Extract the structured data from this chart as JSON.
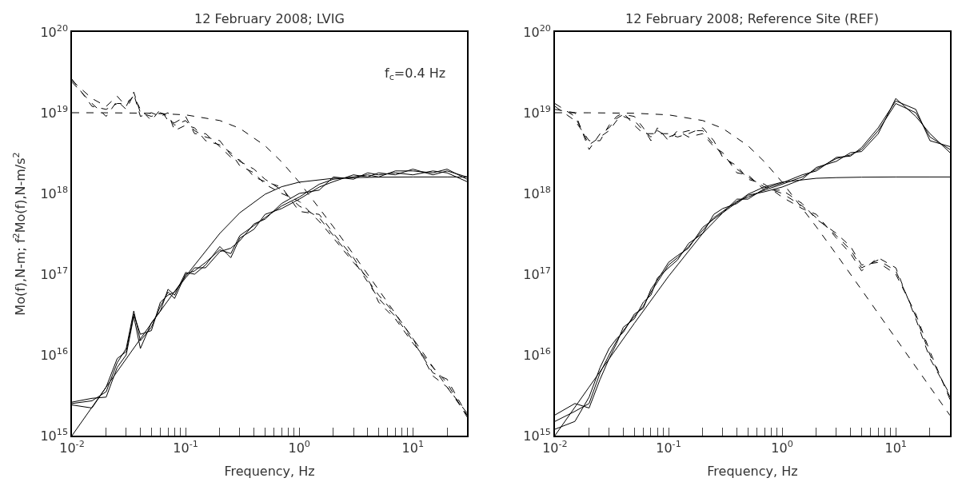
{
  "chart_data": [
    {
      "type": "line",
      "title": "12 February 2008; LVIG",
      "xlabel": "Frequency, Hz",
      "ylabel": "Mo(f),N-m; f$^{2}$Mo(f),N-m/s$^{2}$",
      "log": "xy",
      "marker": "none",
      "annotations": [
        "f$_{c}$=0.4 Hz"
      ],
      "xlim": [
        0.01,
        30
      ],
      "ylim": [
        1000000000000000.0,
        1e+20
      ],
      "xticks": [
        {
          "value": 0.01,
          "label": "10$^{-2}$"
        },
        {
          "value": 0.02,
          "label": null
        },
        {
          "value": 0.03,
          "label": null
        },
        {
          "value": 0.04,
          "label": null
        },
        {
          "value": 0.05,
          "label": null
        },
        {
          "value": 0.06,
          "label": null
        },
        {
          "value": 0.07,
          "label": null
        },
        {
          "value": 0.08,
          "label": null
        },
        {
          "value": 0.09,
          "label": null
        },
        {
          "value": 0.1,
          "label": "10$^{-1}$"
        },
        {
          "value": 0.2,
          "label": null
        },
        {
          "value": 0.3,
          "label": null
        },
        {
          "value": 0.4,
          "label": null
        },
        {
          "value": 0.5,
          "label": null
        },
        {
          "value": 0.6,
          "label": null
        },
        {
          "value": 0.7,
          "label": null
        },
        {
          "value": 0.8,
          "label": null
        },
        {
          "value": 0.9,
          "label": null
        },
        {
          "value": 1,
          "label": "10$^{0}$"
        },
        {
          "value": 2,
          "label": null
        },
        {
          "value": 3,
          "label": null
        },
        {
          "value": 4,
          "label": null
        },
        {
          "value": 5,
          "label": null
        },
        {
          "value": 6,
          "label": null
        },
        {
          "value": 7,
          "label": null
        },
        {
          "value": 8,
          "label": null
        },
        {
          "value": 9,
          "label": null
        },
        {
          "value": 10,
          "label": "10$^{1}$"
        },
        {
          "value": 20,
          "label": null
        }
      ],
      "yticks": [
        {
          "value": 1000000000000000.0,
          "label": "10$^{15}$"
        },
        {
          "value": 1e+16,
          "label": "10$^{16}$"
        },
        {
          "value": 1e+17,
          "label": "10$^{17}$"
        },
        {
          "value": 1e+18,
          "label": "10$^{18}$"
        },
        {
          "value": 1e+19,
          "label": "10$^{19}$"
        },
        {
          "value": 1e+20,
          "label": "10$^{20}$"
        }
      ],
      "series": [
        {
          "color": "#000000",
          "line_style": "solid",
          "x": [
            0.01,
            0.015,
            0.02,
            0.025,
            0.03,
            0.035,
            0.04,
            0.05,
            0.06,
            0.07,
            0.08,
            0.1,
            0.12,
            0.15,
            0.2,
            0.25,
            0.3,
            0.4,
            0.5,
            0.7,
            1,
            1.5,
            2,
            3,
            4,
            5,
            7,
            10,
            15,
            20,
            30
          ],
          "values": [
            2500000000000000.0,
            2700000000000000.0,
            3500000000000000.0,
            8000000000000000.0,
            1.2e+16,
            3.5e+16,
            1.5e+16,
            2.2e+16,
            4e+16,
            6e+16,
            5e+16,
            1e+17,
            1.1e+17,
            1.4e+17,
            2e+17,
            1.8e+17,
            3e+17,
            4e+17,
            5e+17,
            7e+17,
            9e+17,
            1.3e+18,
            1.5e+18,
            1.6e+18,
            1.7e+18,
            1.6e+18,
            1.9e+18,
            1.9e+18,
            1.8e+18,
            2e+18,
            1.5e+18
          ]
        },
        {
          "color": "#000000",
          "line_style": "solid",
          "x": [
            0.01,
            0.015,
            0.02,
            0.025,
            0.03,
            0.035,
            0.04,
            0.05,
            0.06,
            0.07,
            0.08,
            0.1,
            0.12,
            0.15,
            0.2,
            0.25,
            0.3,
            0.4,
            0.5,
            0.7,
            1,
            1.5,
            2,
            3,
            4,
            5,
            7,
            10,
            15,
            20,
            30
          ],
          "values": [
            2600000000000000.0,
            2900000000000000.0,
            3000000000000000.0,
            7000000000000000.0,
            1e+16,
            3e+16,
            1.2e+16,
            2.5e+16,
            3.5e+16,
            6.5e+16,
            5.5e+16,
            1.05e+17,
            1e+17,
            1.3e+17,
            2.2e+17,
            1.6e+17,
            2.8e+17,
            3.6e+17,
            5.5e+17,
            6.5e+17,
            8.5e+17,
            1.2e+18,
            1.4e+18,
            1.7e+18,
            1.6e+18,
            1.8e+18,
            1.7e+18,
            2e+18,
            1.7e+18,
            1.9e+18,
            1.6e+18
          ]
        },
        {
          "color": "#000000",
          "line_style": "solid",
          "x": [
            0.01,
            0.015,
            0.02,
            0.025,
            0.03,
            0.035,
            0.04,
            0.05,
            0.06,
            0.07,
            0.08,
            0.1,
            0.12,
            0.15,
            0.2,
            0.25,
            0.3,
            0.4,
            0.5,
            0.7,
            1,
            1.5,
            2,
            3,
            4,
            5,
            7,
            10,
            15,
            20,
            30
          ],
          "values": [
            2400000000000000.0,
            2200000000000000.0,
            4000000000000000.0,
            9000000000000000.0,
            1.1e+16,
            3.2e+16,
            1.8e+16,
            2e+16,
            4.5e+16,
            5.5e+16,
            6e+16,
            9e+16,
            1.2e+17,
            1.2e+17,
            1.9e+17,
            2.1e+17,
            2.6e+17,
            4.2e+17,
            4.8e+17,
            7.5e+17,
            1e+18,
            1.1e+18,
            1.6e+18,
            1.5e+18,
            1.8e+18,
            1.7e+18,
            1.8e+18,
            1.7e+18,
            1.9e+18,
            1.8e+18,
            1.4e+18
          ]
        },
        {
          "color": "#000000",
          "line_style": "dashed",
          "x": [
            0.01,
            0.015,
            0.02,
            0.025,
            0.03,
            0.035,
            0.04,
            0.05,
            0.06,
            0.07,
            0.08,
            0.1,
            0.12,
            0.15,
            0.2,
            0.25,
            0.3,
            0.4,
            0.5,
            0.7,
            1,
            1.5,
            2,
            3,
            4,
            5,
            7,
            10,
            15,
            20,
            30
          ],
          "values": [
            2.5e+19,
            1.5e+19,
            1.2e+19,
            1.6e+19,
            1.2e+19,
            1.8e+19,
            1e+19,
            9e+18,
            1e+19,
            9e+18,
            7e+18,
            8e+18,
            6e+18,
            5e+18,
            4.5e+18,
            3e+18,
            2.5e+18,
            2e+18,
            1.5e+18,
            1.1e+18,
            7e+17,
            5e+17,
            3e+17,
            1.5e+17,
            8e+16,
            5e+16,
            3e+16,
            1.5e+16,
            6000000000000000.0,
            5000000000000000.0,
            1800000000000000.0
          ]
        },
        {
          "color": "#000000",
          "line_style": "dashed",
          "x": [
            0.01,
            0.015,
            0.02,
            0.025,
            0.03,
            0.035,
            0.04,
            0.05,
            0.06,
            0.07,
            0.08,
            0.1,
            0.12,
            0.15,
            0.2,
            0.25,
            0.3,
            0.4,
            0.5,
            0.7,
            1,
            1.5,
            2,
            3,
            4,
            5,
            7,
            10,
            15,
            20,
            30
          ],
          "values": [
            2.4e+19,
            1.3e+19,
            9e+18,
            1.4e+19,
            1.1e+19,
            1.7e+19,
            9e+18,
            1e+19,
            9e+18,
            1e+19,
            6e+18,
            7e+18,
            6.5e+18,
            4.5e+18,
            4e+18,
            3.2e+18,
            2.2e+18,
            1.8e+18,
            1.3e+18,
            1e+18,
            8e+17,
            4.5e+17,
            2.8e+17,
            1.4e+17,
            9e+16,
            4.5e+16,
            2.8e+16,
            1.4e+16,
            7000000000000000.0,
            4500000000000000.0,
            1700000000000000.0
          ]
        },
        {
          "color": "#000000",
          "line_style": "dashed",
          "x": [
            0.01,
            0.015,
            0.02,
            0.025,
            0.03,
            0.035,
            0.04,
            0.05,
            0.06,
            0.07,
            0.08,
            0.1,
            0.12,
            0.15,
            0.2,
            0.25,
            0.3,
            0.4,
            0.5,
            0.7,
            1,
            1.5,
            2,
            3,
            4,
            5,
            7,
            10,
            15,
            20,
            30
          ],
          "values": [
            2.6e+19,
            1.2e+19,
            1.1e+19,
            1.3e+19,
            1.3e+19,
            1.6e+19,
            1.1e+19,
            8e+18,
            1.1e+19,
            8e+18,
            7.5e+18,
            9e+18,
            5.5e+18,
            5.5e+18,
            3.8e+18,
            2.8e+18,
            2.6e+18,
            1.6e+18,
            1.4e+18,
            1.2e+18,
            6e+17,
            5.5e+17,
            3.2e+17,
            1.6e+17,
            8.5e+16,
            5.5e+16,
            3.2e+16,
            1.6e+16,
            5500000000000000.0,
            4000000000000000.0,
            1900000000000000.0
          ]
        },
        {
          "color": "#000000",
          "line_style": "solid",
          "x": [
            0.01,
            0.02,
            0.05,
            0.1,
            0.2,
            0.3,
            0.5,
            0.7,
            1,
            2,
            3,
            5,
            10,
            20,
            30
          ],
          "values": [
            1000000000000000.0,
            4000000000000000.0,
            2.46e+16,
            9.4e+16,
            3.2e+17,
            5.76e+17,
            9.76e+17,
            1.21e+18,
            1.38e+18,
            1.54e+18,
            1.57e+18,
            1.59e+18,
            1.6e+18,
            1.6e+18,
            1.6e+18
          ]
        },
        {
          "color": "#000000",
          "line_style": "dashed",
          "x": [
            0.01,
            0.02,
            0.05,
            0.1,
            0.2,
            0.3,
            0.5,
            0.7,
            1,
            2,
            3,
            5,
            10,
            20,
            30
          ],
          "values": [
            1e+19,
            9.98e+18,
            9.85e+18,
            9.41e+18,
            8e+18,
            6.4e+18,
            3.9e+18,
            2.46e+18,
            1.38e+18,
            3.85e+17,
            1.76e+17,
            6.4e+16,
            1.6e+16,
            4000000000000000.0,
            1780000000000000.0
          ]
        }
      ]
    },
    {
      "type": "line",
      "title": "12 February 2008; Reference Site (REF)",
      "xlabel": "Frequency, Hz",
      "log": "xy",
      "marker": "none",
      "xlim": [
        0.01,
        30
      ],
      "ylim": [
        1000000000000000.0,
        1e+20
      ],
      "xticks": [
        {
          "value": 0.01,
          "label": "10$^{-2}$"
        },
        {
          "value": 0.02,
          "label": null
        },
        {
          "value": 0.03,
          "label": null
        },
        {
          "value": 0.04,
          "label": null
        },
        {
          "value": 0.05,
          "label": null
        },
        {
          "value": 0.06,
          "label": null
        },
        {
          "value": 0.07,
          "label": null
        },
        {
          "value": 0.08,
          "label": null
        },
        {
          "value": 0.09,
          "label": null
        },
        {
          "value": 0.1,
          "label": "10$^{-1}$"
        },
        {
          "value": 0.2,
          "label": null
        },
        {
          "value": 0.3,
          "label": null
        },
        {
          "value": 0.4,
          "label": null
        },
        {
          "value": 0.5,
          "label": null
        },
        {
          "value": 0.6,
          "label": null
        },
        {
          "value": 0.7,
          "label": null
        },
        {
          "value": 0.8,
          "label": null
        },
        {
          "value": 0.9,
          "label": null
        },
        {
          "value": 1,
          "label": "10$^{0}$"
        },
        {
          "value": 2,
          "label": null
        },
        {
          "value": 3,
          "label": null
        },
        {
          "value": 4,
          "label": null
        },
        {
          "value": 5,
          "label": null
        },
        {
          "value": 6,
          "label": null
        },
        {
          "value": 7,
          "label": null
        },
        {
          "value": 8,
          "label": null
        },
        {
          "value": 9,
          "label": null
        },
        {
          "value": 10,
          "label": "10$^{1}$"
        },
        {
          "value": 20,
          "label": null
        }
      ],
      "yticks": [
        {
          "value": 1000000000000000.0,
          "label": "10$^{15}$"
        },
        {
          "value": 1e+16,
          "label": "10$^{16}$"
        },
        {
          "value": 1e+17,
          "label": "10$^{17}$"
        },
        {
          "value": 1e+18,
          "label": "10$^{18}$"
        },
        {
          "value": 1e+19,
          "label": "10$^{19}$"
        },
        {
          "value": 1e+20,
          "label": "10$^{20}$"
        }
      ],
      "series": [
        {
          "color": "#000000",
          "line_style": "solid",
          "x": [
            0.01,
            0.015,
            0.02,
            0.025,
            0.03,
            0.035,
            0.04,
            0.05,
            0.06,
            0.07,
            0.08,
            0.1,
            0.12,
            0.15,
            0.2,
            0.25,
            0.3,
            0.4,
            0.5,
            0.7,
            1,
            1.5,
            2,
            3,
            4,
            5,
            7,
            10,
            15,
            20,
            30
          ],
          "values": [
            1500000000000000.0,
            2000000000000000.0,
            2500000000000000.0,
            6000000000000000.0,
            1e+16,
            1.5e+16,
            2e+16,
            3e+16,
            4e+16,
            6e+16,
            8e+16,
            1.3e+17,
            1.6e+17,
            2.2e+17,
            3.5e+17,
            5e+17,
            6e+17,
            8e+17,
            9e+17,
            1.1e+18,
            1.3e+18,
            1.6e+18,
            2e+18,
            2.7e+18,
            3e+18,
            3.5e+18,
            6e+18,
            1.3e+19,
            1e+19,
            5e+18,
            3.5e+18
          ]
        },
        {
          "color": "#000000",
          "line_style": "solid",
          "x": [
            0.01,
            0.015,
            0.02,
            0.025,
            0.03,
            0.035,
            0.04,
            0.05,
            0.06,
            0.07,
            0.08,
            0.1,
            0.12,
            0.15,
            0.2,
            0.25,
            0.3,
            0.4,
            0.5,
            0.7,
            1,
            1.5,
            2,
            3,
            4,
            5,
            7,
            10,
            15,
            20,
            30
          ],
          "values": [
            1800000000000000.0,
            2500000000000000.0,
            2200000000000000.0,
            5000000000000000.0,
            9000000000000000.0,
            1.4e+16,
            2.2e+16,
            2.8e+16,
            4.5e+16,
            5.5e+16,
            9e+16,
            1.2e+17,
            1.5e+17,
            2.4e+17,
            3.2e+17,
            5.5e+17,
            6.5e+17,
            7.5e+17,
            9.5e+17,
            1.05e+18,
            1.2e+18,
            1.5e+18,
            2.1e+18,
            2.5e+18,
            3.2e+18,
            3.3e+18,
            5.5e+18,
            1.5e+19,
            9e+18,
            5.5e+18,
            3.2e+18
          ]
        },
        {
          "color": "#000000",
          "line_style": "solid",
          "x": [
            0.01,
            0.015,
            0.02,
            0.025,
            0.03,
            0.035,
            0.04,
            0.05,
            0.06,
            0.07,
            0.08,
            0.1,
            0.12,
            0.15,
            0.2,
            0.25,
            0.3,
            0.4,
            0.5,
            0.7,
            1,
            1.5,
            2,
            3,
            4,
            5,
            7,
            10,
            15,
            20,
            30
          ],
          "values": [
            1200000000000000.0,
            1500000000000000.0,
            3000000000000000.0,
            7000000000000000.0,
            1.2e+16,
            1.6e+16,
            1.9e+16,
            3.2e+16,
            3.8e+16,
            6.5e+16,
            8.5e+16,
            1.4e+17,
            1.7e+17,
            2.1e+17,
            3.8e+17,
            4.8e+17,
            5.8e+17,
            8.5e+17,
            8.5e+17,
            1.15e+18,
            1.35e+18,
            1.7e+18,
            1.9e+18,
            2.8e+18,
            2.9e+18,
            3.7e+18,
            6.5e+18,
            1.4e+19,
            1.1e+19,
            4.5e+18,
            3.8e+18
          ]
        },
        {
          "color": "#000000",
          "line_style": "dashed",
          "x": [
            0.01,
            0.015,
            0.02,
            0.025,
            0.03,
            0.035,
            0.04,
            0.05,
            0.06,
            0.07,
            0.08,
            0.1,
            0.12,
            0.15,
            0.2,
            0.25,
            0.3,
            0.4,
            0.5,
            0.7,
            1,
            1.5,
            2,
            3,
            4,
            5,
            7,
            10,
            15,
            20,
            30
          ],
          "values": [
            1.3e+19,
            9e+18,
            4e+18,
            5e+18,
            6e+18,
            8e+18,
            9e+18,
            8e+18,
            6e+18,
            5e+18,
            6e+18,
            5e+18,
            5.5e+18,
            6e+18,
            6e+18,
            4e+18,
            3e+18,
            2e+18,
            1.6e+18,
            1.2e+18,
            1e+18,
            7e+17,
            5e+17,
            3e+17,
            2e+17,
            1.2e+17,
            1.5e+17,
            1.1e+17,
            3e+16,
            1e+16,
            3000000000000000.0
          ]
        },
        {
          "color": "#000000",
          "line_style": "dashed",
          "x": [
            0.01,
            0.015,
            0.02,
            0.025,
            0.03,
            0.035,
            0.04,
            0.05,
            0.06,
            0.07,
            0.08,
            0.1,
            0.12,
            0.15,
            0.2,
            0.25,
            0.3,
            0.4,
            0.5,
            0.7,
            1,
            1.5,
            2,
            3,
            4,
            5,
            7,
            10,
            15,
            20,
            30
          ],
          "values": [
            1.2e+19,
            8e+18,
            4.5e+18,
            4.5e+18,
            7e+18,
            9e+18,
            1e+19,
            7e+18,
            5.5e+18,
            5.5e+18,
            5.5e+18,
            5.5e+18,
            5e+18,
            5.5e+18,
            6.5e+18,
            4.5e+18,
            2.8e+18,
            2.2e+18,
            1.5e+18,
            1.3e+18,
            9e+17,
            6.5e+17,
            5.5e+17,
            2.8e+17,
            1.8e+17,
            1.1e+17,
            1.6e+17,
            1.2e+17,
            2.8e+16,
            9000000000000000.0,
            3200000000000000.0
          ]
        },
        {
          "color": "#000000",
          "line_style": "dashed",
          "x": [
            0.01,
            0.015,
            0.02,
            0.025,
            0.03,
            0.035,
            0.04,
            0.05,
            0.06,
            0.07,
            0.08,
            0.1,
            0.12,
            0.15,
            0.2,
            0.25,
            0.3,
            0.4,
            0.5,
            0.7,
            1,
            1.5,
            2,
            3,
            4,
            5,
            7,
            10,
            15,
            20,
            30
          ],
          "values": [
            1.1e+19,
            1e+19,
            3.5e+18,
            5.5e+18,
            6.5e+18,
            8.5e+18,
            9.5e+18,
            9e+18,
            6.5e+18,
            4.5e+18,
            6.5e+18,
            4.5e+18,
            6e+18,
            5e+18,
            5.5e+18,
            3.8e+18,
            3.2e+18,
            1.8e+18,
            1.7e+18,
            1.1e+18,
            1.1e+18,
            7.5e+17,
            4.8e+17,
            3.2e+17,
            2.2e+17,
            1.3e+17,
            1.4e+17,
            1e+17,
            3.2e+16,
            1.1e+16,
            2800000000000000.0
          ]
        },
        {
          "color": "#000000",
          "line_style": "solid",
          "x": [
            0.01,
            0.02,
            0.05,
            0.1,
            0.2,
            0.3,
            0.5,
            0.7,
            1,
            2,
            3,
            5,
            10,
            20,
            30
          ],
          "values": [
            1000000000000000.0,
            4000000000000000.0,
            2.46e+16,
            9.4e+16,
            3.2e+17,
            5.76e+17,
            9.76e+17,
            1.21e+18,
            1.38e+18,
            1.54e+18,
            1.57e+18,
            1.59e+18,
            1.6e+18,
            1.6e+18,
            1.6e+18
          ]
        },
        {
          "color": "#000000",
          "line_style": "dashed",
          "x": [
            0.01,
            0.02,
            0.05,
            0.1,
            0.2,
            0.3,
            0.5,
            0.7,
            1,
            2,
            3,
            5,
            10,
            20,
            30
          ],
          "values": [
            1e+19,
            9.98e+18,
            9.85e+18,
            9.41e+18,
            8e+18,
            6.4e+18,
            3.9e+18,
            2.46e+18,
            1.38e+18,
            3.85e+17,
            1.76e+17,
            6.4e+16,
            1.6e+16,
            4000000000000000.0,
            1780000000000000.0
          ]
        }
      ]
    }
  ]
}
